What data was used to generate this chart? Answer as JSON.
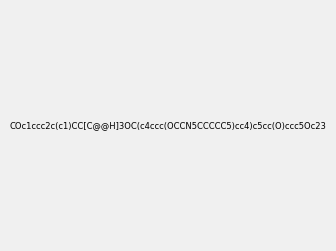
{
  "smiles": "COc1ccc2c(c1)CC[C@@H]3OC(c4ccc(OCCN5CCCCC5)cc4)c5cc(O)ccc5Oc23",
  "img_size": [
    300,
    300
  ],
  "background_color": "#f0f0f0",
  "title": ""
}
